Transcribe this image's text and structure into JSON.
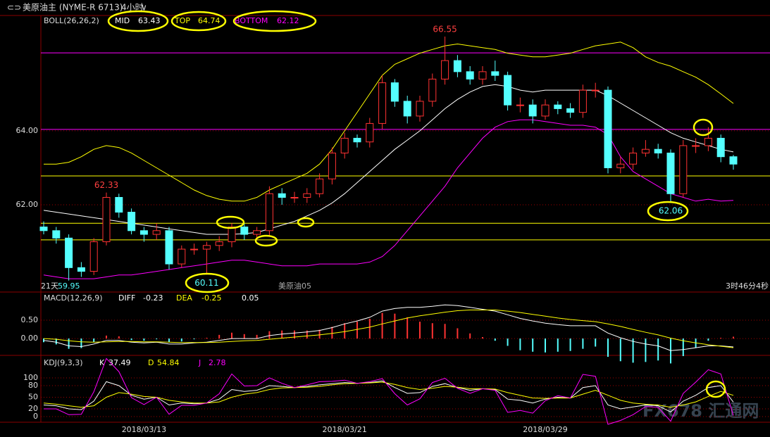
{
  "header": {
    "title": "美原油主 (NYME-R 6713)",
    "period": "4小时"
  },
  "status": {
    "days": "21天",
    "low": "59.95",
    "contract": "美原油05",
    "countdown": "3时46分4秒"
  },
  "watermark": "FX678 汇通网",
  "chart_data": [
    {
      "type": "candlestick",
      "indicator": "BOLL(26,26,2)",
      "open": [
        61.4,
        61.3,
        61.1,
        60.3,
        60.2,
        61.0,
        62.2,
        61.8,
        61.3,
        61.2,
        61.3,
        60.4,
        60.8,
        60.8,
        60.9,
        61.0,
        61.4,
        61.2,
        61.3,
        62.3,
        62.2,
        62.2,
        62.3,
        62.7,
        63.4,
        63.8,
        63.7,
        64.2,
        65.3,
        64.8,
        64.4,
        64.8,
        65.4,
        65.9,
        65.6,
        65.4,
        65.6,
        65.5,
        64.7,
        64.7,
        64.4,
        64.7,
        64.6,
        64.5,
        65.1,
        65.1,
        63.0,
        63.1,
        63.4,
        63.5,
        63.4,
        62.3,
        63.6,
        63.6,
        63.8,
        63.3
      ],
      "high": [
        61.55,
        61.4,
        61.2,
        60.45,
        61.1,
        62.33,
        62.3,
        61.9,
        61.4,
        61.5,
        61.4,
        60.9,
        60.95,
        61.0,
        61.15,
        61.5,
        61.5,
        61.4,
        62.5,
        62.45,
        62.35,
        62.45,
        62.85,
        63.55,
        63.95,
        63.9,
        64.35,
        65.5,
        65.4,
        64.95,
        64.95,
        65.55,
        66.55,
        66.05,
        65.75,
        65.75,
        65.9,
        65.6,
        64.9,
        64.85,
        64.85,
        64.8,
        64.75,
        65.25,
        65.3,
        65.2,
        63.3,
        63.55,
        63.75,
        63.65,
        63.5,
        63.75,
        63.8,
        64.1,
        63.9,
        63.35
      ],
      "low": [
        61.2,
        60.95,
        59.95,
        60.05,
        60.1,
        60.9,
        61.65,
        61.2,
        61.0,
        61.05,
        60.25,
        60.3,
        60.65,
        60.11,
        60.75,
        60.85,
        61.05,
        61.05,
        61.15,
        62.0,
        62.05,
        62.05,
        62.2,
        62.55,
        63.25,
        63.55,
        63.55,
        64.05,
        64.65,
        64.2,
        64.25,
        64.65,
        65.25,
        65.45,
        65.25,
        65.25,
        65.35,
        64.55,
        64.5,
        64.2,
        64.3,
        64.45,
        64.35,
        64.35,
        64.9,
        62.85,
        62.85,
        62.95,
        63.3,
        63.25,
        62.06,
        62.2,
        63.4,
        63.45,
        63.15,
        62.95
      ],
      "close": [
        61.3,
        61.1,
        60.3,
        60.2,
        61.0,
        62.2,
        61.8,
        61.3,
        61.2,
        61.3,
        60.4,
        60.8,
        60.8,
        60.9,
        61.0,
        61.4,
        61.2,
        61.3,
        62.3,
        62.2,
        62.2,
        62.3,
        62.7,
        63.4,
        63.8,
        63.7,
        64.2,
        65.3,
        64.8,
        64.4,
        64.8,
        65.4,
        65.9,
        65.6,
        65.4,
        65.6,
        65.5,
        64.7,
        64.7,
        64.4,
        64.7,
        64.6,
        64.5,
        65.1,
        65.1,
        63.0,
        63.1,
        63.4,
        63.5,
        63.4,
        62.3,
        63.6,
        63.6,
        63.8,
        63.3,
        63.1
      ],
      "up_color": "#ff3232",
      "down_color": "#54ffff",
      "series": [
        {
          "name": "MID",
          "color": "#ffffff",
          "current": 63.43,
          "values": [
            61.85,
            61.8,
            61.75,
            61.7,
            61.65,
            61.6,
            61.55,
            61.5,
            61.45,
            61.4,
            61.35,
            61.3,
            61.25,
            61.2,
            61.2,
            61.2,
            61.22,
            61.25,
            61.35,
            61.45,
            61.55,
            61.7,
            61.85,
            62.05,
            62.3,
            62.6,
            62.9,
            63.2,
            63.5,
            63.75,
            64.0,
            64.3,
            64.6,
            64.85,
            65.05,
            65.2,
            65.25,
            65.2,
            65.1,
            65.05,
            65.1,
            65.1,
            65.1,
            65.1,
            65.1,
            64.95,
            64.75,
            64.55,
            64.35,
            64.15,
            63.95,
            63.8,
            63.7,
            63.6,
            63.5,
            63.43
          ]
        },
        {
          "name": "TOP",
          "color": "#ffff00",
          "current": 64.74,
          "values": [
            63.1,
            63.1,
            63.15,
            63.3,
            63.5,
            63.6,
            63.55,
            63.4,
            63.2,
            63.0,
            62.8,
            62.6,
            62.4,
            62.25,
            62.15,
            62.1,
            62.1,
            62.2,
            62.4,
            62.55,
            62.7,
            62.85,
            63.1,
            63.5,
            64.0,
            64.5,
            65.0,
            65.5,
            65.8,
            65.95,
            66.1,
            66.2,
            66.3,
            66.35,
            66.3,
            66.25,
            66.2,
            66.1,
            66.05,
            66.0,
            66.0,
            66.05,
            66.1,
            66.2,
            66.3,
            66.35,
            66.4,
            66.25,
            66.0,
            65.85,
            65.75,
            65.6,
            65.45,
            65.25,
            65.0,
            64.74
          ]
        },
        {
          "name": "BOTTOM",
          "color": "#ff00ff",
          "current": 62.12,
          "values": [
            60.1,
            60.05,
            60.0,
            60.0,
            60.0,
            60.05,
            60.1,
            60.1,
            60.15,
            60.2,
            60.25,
            60.3,
            60.35,
            60.4,
            60.45,
            60.5,
            60.5,
            60.45,
            60.4,
            60.35,
            60.35,
            60.35,
            60.4,
            60.4,
            60.4,
            60.4,
            60.45,
            60.6,
            60.9,
            61.3,
            61.7,
            62.1,
            62.5,
            63.0,
            63.4,
            63.8,
            64.1,
            64.25,
            64.3,
            64.3,
            64.25,
            64.2,
            64.15,
            64.15,
            64.1,
            63.9,
            63.3,
            62.9,
            62.7,
            62.5,
            62.3,
            62.2,
            62.1,
            62.15,
            62.1,
            62.12
          ]
        }
      ],
      "extremes": [
        62.33,
        66.55,
        60.11,
        62.06
      ],
      "levels": [
        {
          "value": 66.11,
          "color": "#ff00ff"
        },
        {
          "value": 64.04,
          "color": "#ff00ff"
        },
        {
          "value": 62.78,
          "color": "#ffff00"
        },
        {
          "value": 61.5,
          "color": "#ffff00"
        },
        {
          "value": 61.05,
          "color": "#ffff00"
        }
      ],
      "ylim": [
        59.64,
        67.12
      ],
      "yticks": [
        {
          "value": 62,
          "label": "62.00"
        },
        {
          "value": 64,
          "label": "64.00"
        }
      ],
      "grid": true
    },
    {
      "type": "macd",
      "indicator": "MACD(12,26,9)",
      "series": [
        {
          "name": "DIFF",
          "color": "#ffffff",
          "current": -0.23,
          "values": [
            -0.05,
            -0.1,
            -0.2,
            -0.22,
            -0.15,
            -0.05,
            -0.05,
            -0.1,
            -0.12,
            -0.1,
            -0.15,
            -0.15,
            -0.12,
            -0.1,
            -0.05,
            0.0,
            0.0,
            0.0,
            0.08,
            0.12,
            0.15,
            0.18,
            0.22,
            0.3,
            0.4,
            0.48,
            0.58,
            0.75,
            0.82,
            0.85,
            0.85,
            0.88,
            0.92,
            0.9,
            0.85,
            0.8,
            0.75,
            0.65,
            0.55,
            0.48,
            0.42,
            0.38,
            0.35,
            0.35,
            0.35,
            0.15,
            0.02,
            -0.08,
            -0.15,
            -0.2,
            -0.33,
            -0.3,
            -0.25,
            -0.2,
            -0.2,
            -0.23
          ]
        },
        {
          "name": "DEA",
          "color": "#ffff00",
          "current": -0.25,
          "values": [
            0.0,
            -0.02,
            -0.06,
            -0.09,
            -0.1,
            -0.09,
            -0.08,
            -0.08,
            -0.09,
            -0.09,
            -0.1,
            -0.11,
            -0.11,
            -0.11,
            -0.1,
            -0.08,
            -0.06,
            -0.05,
            -0.02,
            0.01,
            0.04,
            0.07,
            0.1,
            0.14,
            0.19,
            0.25,
            0.31,
            0.4,
            0.48,
            0.56,
            0.62,
            0.67,
            0.72,
            0.76,
            0.78,
            0.78,
            0.78,
            0.75,
            0.71,
            0.66,
            0.61,
            0.56,
            0.52,
            0.49,
            0.46,
            0.4,
            0.33,
            0.25,
            0.17,
            0.1,
            0.01,
            -0.06,
            -0.12,
            -0.17,
            -0.21,
            -0.25
          ]
        }
      ],
      "histogram": {
        "current": 0.05,
        "up_color": "#ff3232",
        "down_color": "#54ffff",
        "values": [
          -0.1,
          -0.16,
          -0.28,
          -0.26,
          -0.1,
          0.08,
          0.06,
          -0.04,
          -0.06,
          -0.02,
          -0.1,
          -0.08,
          -0.02,
          0.02,
          0.1,
          0.16,
          0.12,
          0.1,
          0.2,
          0.22,
          0.22,
          0.22,
          0.24,
          0.32,
          0.42,
          0.46,
          0.54,
          0.7,
          0.68,
          0.58,
          0.46,
          0.42,
          0.4,
          0.28,
          0.14,
          0.04,
          -0.06,
          -0.2,
          -0.32,
          -0.36,
          -0.38,
          -0.36,
          -0.34,
          -0.28,
          -0.22,
          -0.5,
          -0.62,
          -0.66,
          -0.64,
          -0.6,
          -0.68,
          -0.48,
          -0.26,
          -0.06,
          0.02,
          0.05
        ]
      },
      "ylim": [
        -0.46,
        1.27
      ],
      "yticks": [
        {
          "value": 0.5,
          "label": "0.50"
        },
        {
          "value": 0,
          "label": "0.00"
        }
      ],
      "grid": true
    },
    {
      "type": "kdj",
      "indicator": "KDJ(9,3,3)",
      "categories": [
        null,
        null,
        null,
        null,
        null,
        null,
        null,
        null,
        "2018/03/13",
        null,
        null,
        null,
        null,
        null,
        null,
        null,
        null,
        null,
        null,
        null,
        null,
        null,
        null,
        null,
        "2018/03/21",
        null,
        null,
        null,
        null,
        null,
        null,
        null,
        null,
        null,
        null,
        null,
        null,
        null,
        null,
        null,
        "2018/03/29",
        null,
        null,
        null,
        null,
        null,
        null,
        null,
        null,
        null,
        null,
        null,
        null,
        null,
        null,
        null
      ],
      "series": [
        {
          "name": "K",
          "color": "#ffffff",
          "current": 37.49,
          "values": [
            30,
            28,
            20,
            18,
            40,
            90,
            80,
            55,
            45,
            50,
            30,
            35,
            33,
            35,
            45,
            70,
            65,
            68,
            80,
            78,
            75,
            78,
            82,
            85,
            88,
            86,
            88,
            92,
            75,
            60,
            62,
            78,
            85,
            75,
            68,
            72,
            70,
            45,
            42,
            35,
            45,
            50,
            48,
            75,
            80,
            30,
            20,
            25,
            30,
            28,
            12,
            40,
            55,
            75,
            80,
            37.49
          ]
        },
        {
          "name": "D",
          "color": "#ffff00",
          "current": 54.84,
          "values": [
            35,
            32,
            28,
            24,
            28,
            50,
            62,
            58,
            52,
            50,
            42,
            38,
            35,
            35,
            38,
            50,
            58,
            62,
            70,
            74,
            75,
            76,
            78,
            82,
            85,
            86,
            87,
            89,
            83,
            75,
            70,
            73,
            78,
            76,
            72,
            72,
            71,
            62,
            55,
            48,
            47,
            48,
            48,
            58,
            68,
            55,
            42,
            35,
            32,
            30,
            24,
            30,
            38,
            52,
            65,
            54.84
          ]
        },
        {
          "name": "J",
          "color": "#ff00ff",
          "current": 2.78,
          "values": [
            20,
            20,
            5,
            6,
            64,
            150,
            116,
            49,
            31,
            50,
            6,
            29,
            29,
            35,
            59,
            110,
            79,
            80,
            100,
            86,
            75,
            82,
            90,
            91,
            94,
            86,
            90,
            98,
            59,
            30,
            46,
            88,
            99,
            73,
            60,
            72,
            68,
            11,
            16,
            9,
            41,
            54,
            48,
            109,
            104,
            -20,
            -10,
            5,
            26,
            24,
            -12,
            60,
            89,
            121,
            110,
            2.78
          ]
        }
      ],
      "ylim": [
        -14.5,
        158
      ],
      "yticks": [
        0,
        20,
        50,
        80,
        100
      ],
      "grid": true
    }
  ]
}
